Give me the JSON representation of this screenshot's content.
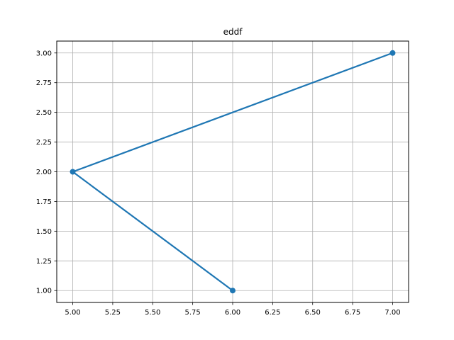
{
  "chart_data": {
    "type": "line",
    "title": "eddf",
    "xlabel": "",
    "ylabel": "",
    "x": [
      6,
      5,
      7
    ],
    "series": [
      {
        "values": [
          1,
          2,
          3
        ],
        "color": "#1f77b4",
        "marker": "circle"
      }
    ],
    "xlim": [
      4.9,
      7.1
    ],
    "ylim": [
      0.9,
      3.1
    ],
    "xticks": [
      "5.00",
      "5.25",
      "5.50",
      "5.75",
      "6.00",
      "6.25",
      "6.50",
      "6.75",
      "7.00"
    ],
    "yticks": [
      "1.00",
      "1.25",
      "1.50",
      "1.75",
      "2.00",
      "2.25",
      "2.50",
      "2.75",
      "3.00"
    ],
    "grid": true,
    "legend": "none"
  }
}
